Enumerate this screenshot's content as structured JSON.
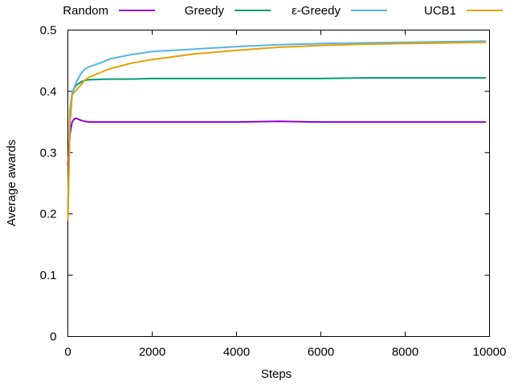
{
  "chart_data": {
    "type": "line",
    "title": "",
    "xlabel": "Steps",
    "ylabel": "Average awards",
    "xlim": [
      0,
      10000
    ],
    "ylim": [
      0,
      0.5
    ],
    "xticks": [
      0,
      2000,
      4000,
      6000,
      8000,
      10000
    ],
    "xtick_labels": [
      "0",
      "2000",
      "4000",
      "6000",
      "8000",
      "10000"
    ],
    "yticks": [
      0,
      0.1,
      0.2,
      0.3,
      0.4,
      0.5
    ],
    "ytick_labels": [
      "0",
      "0.1",
      "0.2",
      "0.3",
      "0.4",
      "0.5"
    ],
    "grid": false,
    "legend_position": "top, outside plot, horizontal",
    "series": [
      {
        "name": "Random",
        "color": "#9400d3",
        "x": [
          0,
          50,
          100,
          150,
          200,
          300,
          400,
          500,
          1000,
          1500,
          2000,
          3000,
          4000,
          5000,
          6000,
          7000,
          8000,
          9000,
          9900
        ],
        "y": [
          0.28,
          0.33,
          0.35,
          0.355,
          0.356,
          0.353,
          0.351,
          0.35,
          0.35,
          0.35,
          0.35,
          0.35,
          0.35,
          0.351,
          0.35,
          0.35,
          0.35,
          0.35,
          0.35
        ]
      },
      {
        "name": "Greedy",
        "color": "#009e73",
        "x": [
          0,
          50,
          100,
          150,
          200,
          300,
          400,
          500,
          1000,
          1500,
          2000,
          3000,
          4000,
          5000,
          6000,
          7000,
          8000,
          9000,
          9900
        ],
        "y": [
          0.2,
          0.35,
          0.395,
          0.405,
          0.41,
          0.415,
          0.418,
          0.419,
          0.42,
          0.42,
          0.421,
          0.421,
          0.421,
          0.421,
          0.421,
          0.422,
          0.422,
          0.422,
          0.422
        ]
      },
      {
        "name": "ε-Greedy",
        "color": "#56b4e9",
        "x": [
          0,
          50,
          100,
          150,
          200,
          300,
          400,
          500,
          750,
          1000,
          1500,
          2000,
          3000,
          4000,
          5000,
          6000,
          7000,
          8000,
          9000,
          9900
        ],
        "y": [
          0.21,
          0.37,
          0.398,
          0.405,
          0.415,
          0.428,
          0.436,
          0.44,
          0.446,
          0.453,
          0.46,
          0.465,
          0.469,
          0.473,
          0.476,
          0.478,
          0.479,
          0.48,
          0.481,
          0.482
        ]
      },
      {
        "name": "UCB1",
        "color": "#e69f00",
        "x": [
          0,
          50,
          100,
          150,
          200,
          300,
          400,
          500,
          750,
          1000,
          1500,
          2000,
          3000,
          4000,
          5000,
          6000,
          7000,
          8000,
          9000,
          9900
        ],
        "y": [
          0.19,
          0.36,
          0.395,
          0.398,
          0.402,
          0.41,
          0.418,
          0.423,
          0.43,
          0.437,
          0.446,
          0.452,
          0.461,
          0.467,
          0.472,
          0.475,
          0.477,
          0.478,
          0.479,
          0.48
        ]
      }
    ]
  }
}
